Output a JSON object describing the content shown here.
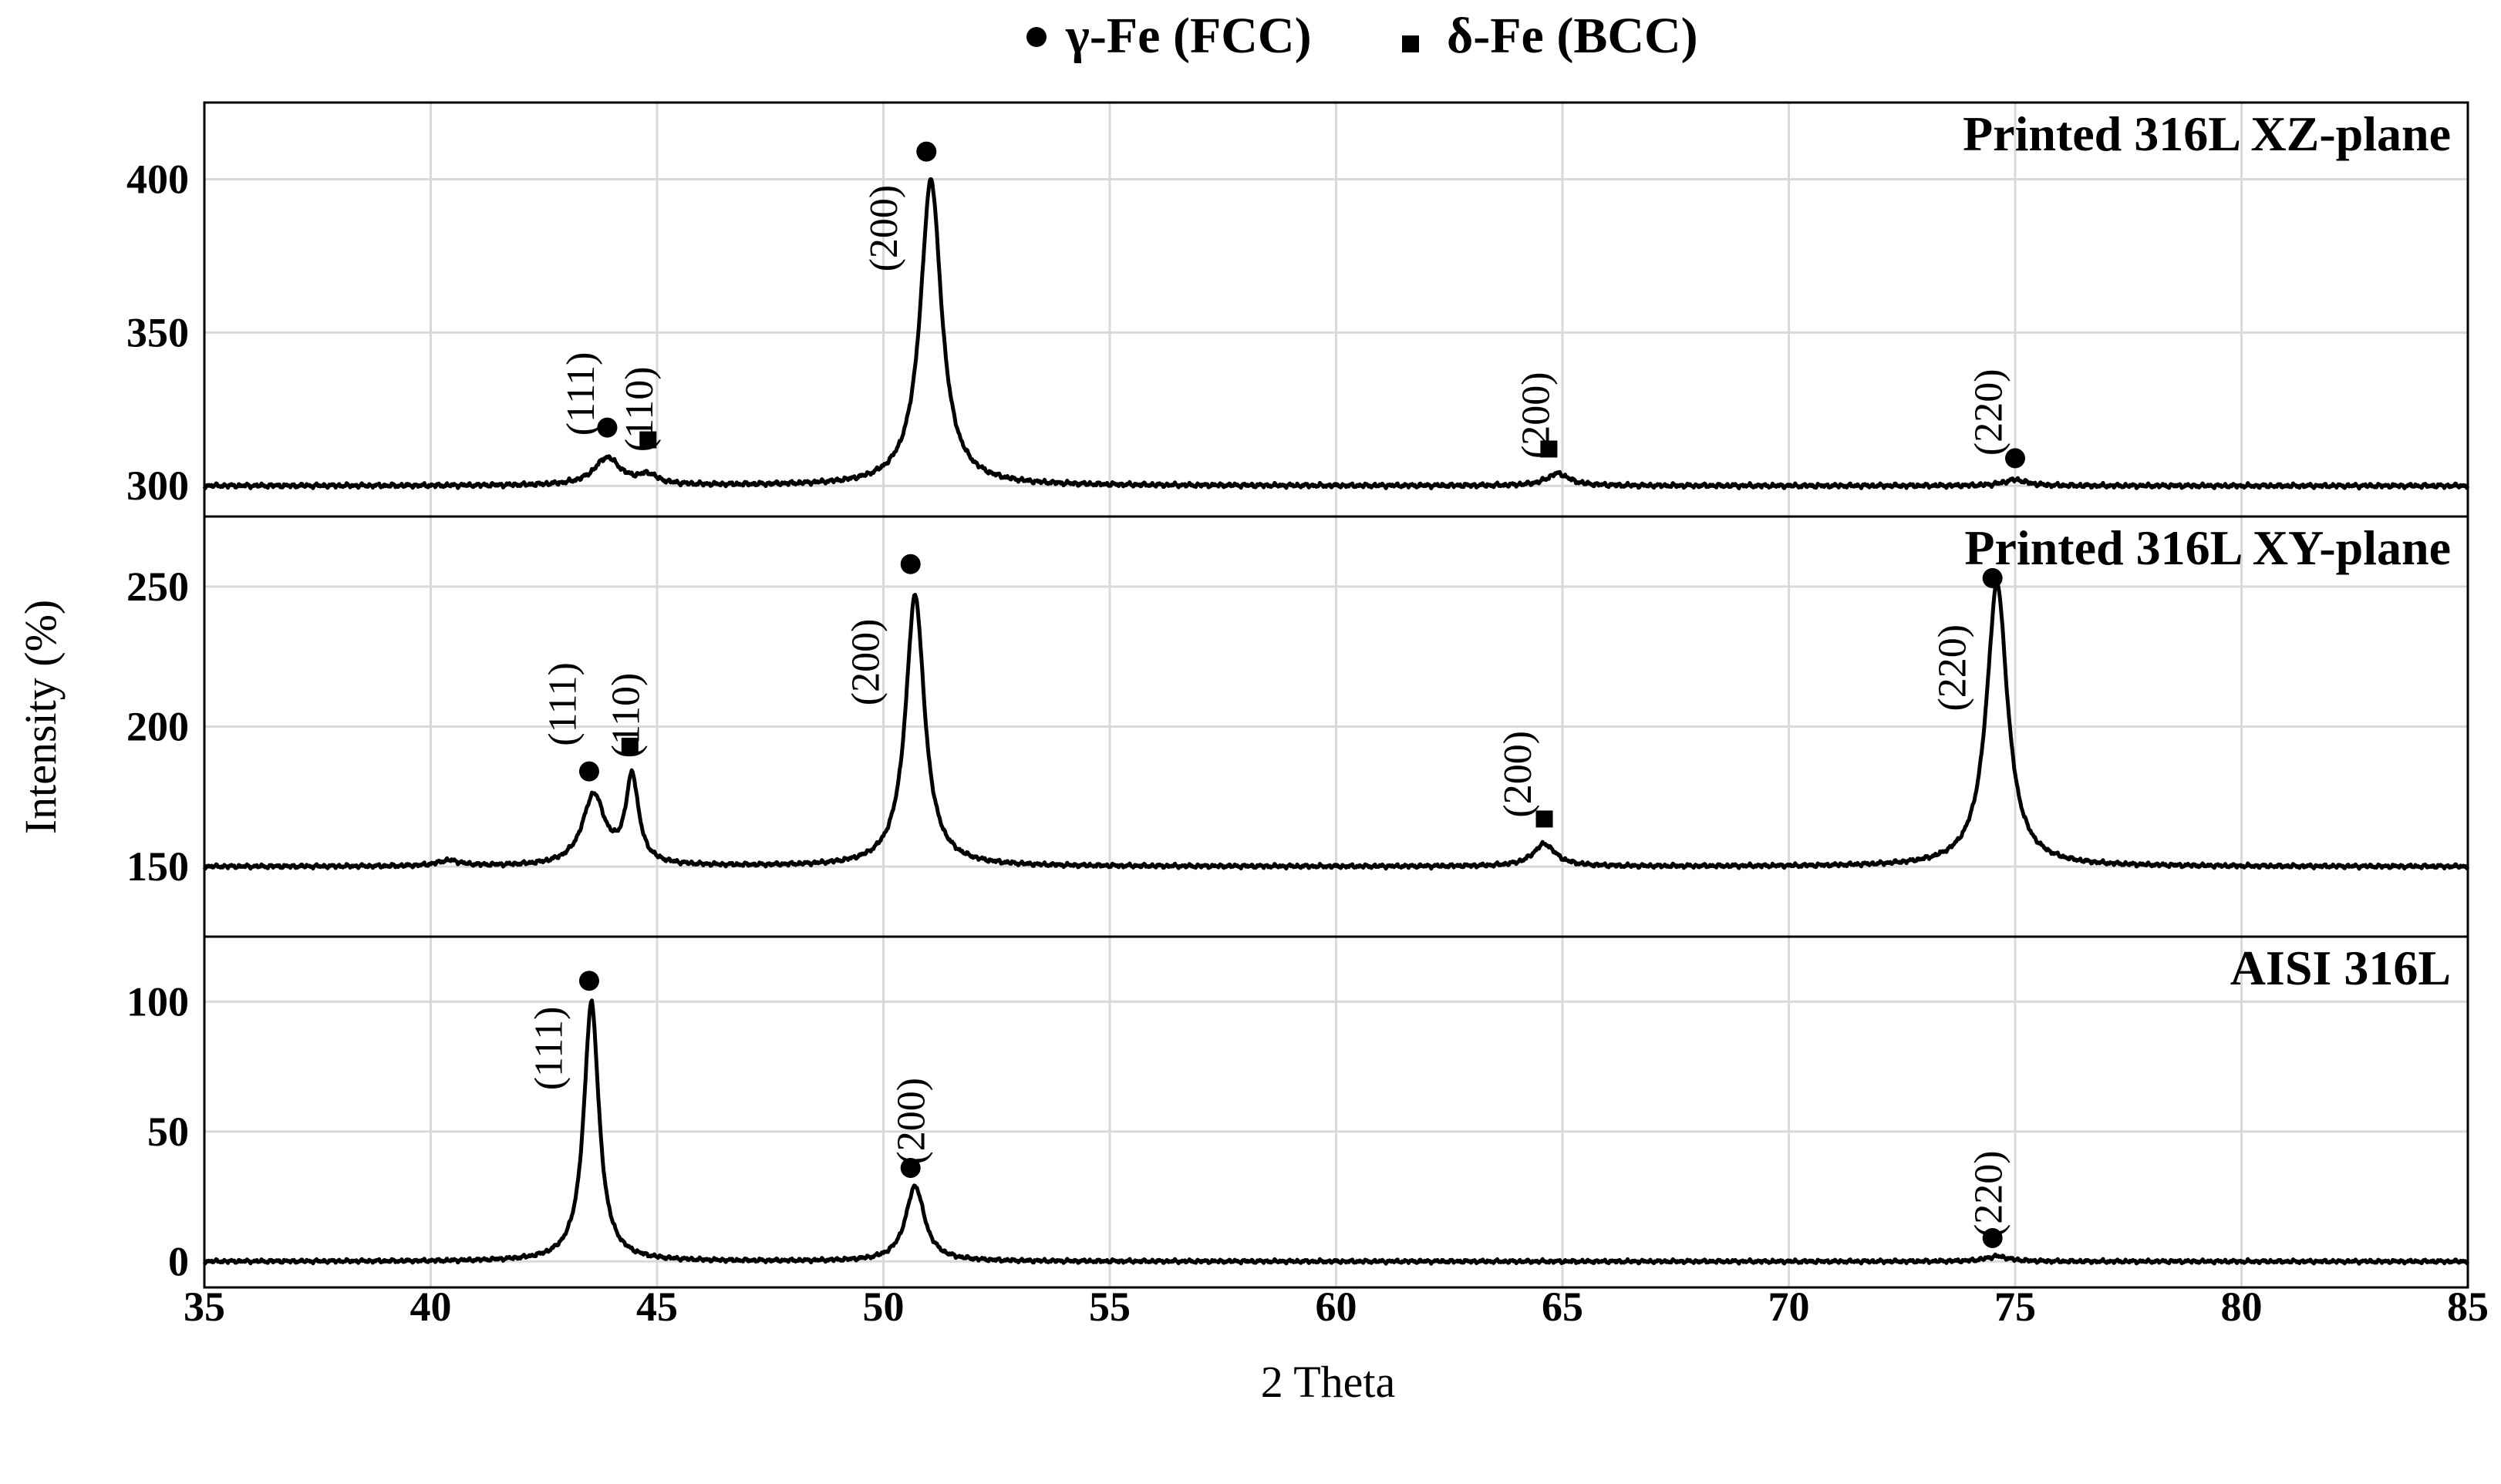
{
  "chart_data": {
    "type": "line",
    "legend": [
      {
        "marker": "circle",
        "label": "γ-Fe (FCC)"
      },
      {
        "marker": "square",
        "label": "δ-Fe (BCC)"
      }
    ],
    "xlabel": "2 Theta",
    "ylabel": "Intensity (%)",
    "xlim": [
      35,
      85
    ],
    "xticks": [
      35,
      40,
      45,
      50,
      55,
      60,
      65,
      70,
      75,
      80,
      85
    ],
    "grid": true,
    "panels": [
      {
        "id": "xz",
        "title": "Printed 316L XZ-plane",
        "ylim": [
          290,
          425
        ],
        "yticks": [
          300,
          350,
          400
        ],
        "baseline": 300,
        "peaks": [
          {
            "x": 43.9,
            "height": 9,
            "width": 0.35
          },
          {
            "x": 44.8,
            "height": 3,
            "width": 0.25
          },
          {
            "x": 51.05,
            "height": 100,
            "width": 0.28
          },
          {
            "x": 64.9,
            "height": 4,
            "width": 0.3
          },
          {
            "x": 75.0,
            "height": 2,
            "width": 0.3
          }
        ],
        "annotations": [
          {
            "label": "(111)",
            "x": 43.6,
            "y": 330,
            "marker": "circle",
            "mx": 43.9,
            "my": 319
          },
          {
            "label": "(110)",
            "x": 44.9,
            "y": 325,
            "marker": "square",
            "mx": 44.8,
            "my": 315
          },
          {
            "label": "(200)",
            "x": 50.3,
            "y": 384,
            "marker": "circle",
            "mx": 50.95,
            "my": 409
          },
          {
            "label": "(200)",
            "x": 64.7,
            "y": 323,
            "marker": "square",
            "mx": 64.7,
            "my": 312
          },
          {
            "label": "(220)",
            "x": 74.7,
            "y": 324,
            "marker": "circle",
            "mx": 75.0,
            "my": 309
          }
        ]
      },
      {
        "id": "xy",
        "title": "Printed 316L XY-plane",
        "ylim": [
          125,
          275
        ],
        "yticks": [
          150,
          200,
          250
        ],
        "baseline": 150,
        "peaks": [
          {
            "x": 40.4,
            "height": 2,
            "width": 0.3
          },
          {
            "x": 43.6,
            "height": 25,
            "width": 0.3
          },
          {
            "x": 44.45,
            "height": 31,
            "width": 0.17
          },
          {
            "x": 50.7,
            "height": 97,
            "width": 0.25
          },
          {
            "x": 64.6,
            "height": 8,
            "width": 0.3
          },
          {
            "x": 74.6,
            "height": 101,
            "width": 0.28
          }
        ],
        "annotations": [
          {
            "label": "(111)",
            "x": 43.2,
            "y": 208,
            "marker": "circle",
            "mx": 43.5,
            "my": 184
          },
          {
            "label": "(110)",
            "x": 44.6,
            "y": 204,
            "marker": "square",
            "mx": 44.4,
            "my": 193
          },
          {
            "label": "(200)",
            "x": 49.9,
            "y": 223,
            "marker": "circle",
            "mx": 50.6,
            "my": 258
          },
          {
            "label": "(200)",
            "x": 64.3,
            "y": 183,
            "marker": "square",
            "mx": 64.6,
            "my": 167
          },
          {
            "label": "(220)",
            "x": 73.9,
            "y": 221,
            "marker": "circle",
            "mx": 74.5,
            "my": 253
          }
        ]
      },
      {
        "id": "aisi",
        "title": "AISI  316L",
        "ylim": [
          -10,
          125
        ],
        "yticks": [
          0,
          50,
          100
        ],
        "baseline": 0,
        "peaks": [
          {
            "x": 43.55,
            "height": 100,
            "width": 0.2
          },
          {
            "x": 50.7,
            "height": 29,
            "width": 0.25
          },
          {
            "x": 74.6,
            "height": 2,
            "width": 0.3
          }
        ],
        "annotations": [
          {
            "label": "(111)",
            "x": 42.9,
            "y": 82,
            "marker": "circle",
            "mx": 43.5,
            "my": 108
          },
          {
            "label": "(200)",
            "x": 50.9,
            "y": 54,
            "marker": "circle",
            "mx": 50.6,
            "my": 36
          },
          {
            "label": "(220)",
            "x": 74.7,
            "y": 26,
            "marker": "circle",
            "mx": 74.5,
            "my": 9
          }
        ]
      }
    ]
  }
}
